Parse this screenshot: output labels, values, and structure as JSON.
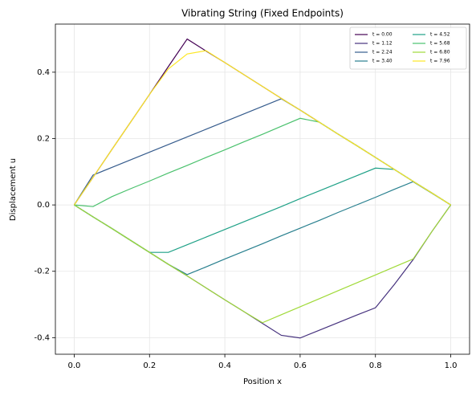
{
  "chart_data": {
    "type": "line",
    "title": "Vibrating String (Fixed Endpoints)",
    "x_label": "Position x",
    "y_label": "Displacement u",
    "xlim": [
      -0.05,
      1.05
    ],
    "ylim": [
      -0.45,
      0.545
    ],
    "xticks": [
      {
        "value": 0,
        "label": "0.0"
      },
      0.2,
      0.4,
      0.6,
      0.8,
      {
        "value": 1,
        "label": "1.0"
      }
    ],
    "yticks": [
      -0.4,
      -0.2,
      {
        "value": 0,
        "label": "0.0"
      },
      0.2,
      0.4
    ],
    "grid": true,
    "legend": "upper right",
    "x": [
      0,
      0.05,
      0.1,
      0.15,
      0.2,
      0.25,
      0.3,
      0.35,
      0.4,
      0.45,
      0.5,
      0.55,
      0.6,
      0.65,
      0.7,
      0.75,
      0.8,
      0.85,
      0.9,
      0.95,
      1
    ],
    "series": [
      {
        "name": "t = 0.00",
        "color": "#440154",
        "values": [
          0,
          0.083,
          0.167,
          0.25,
          0.333,
          0.417,
          0.5,
          0.464,
          0.429,
          0.393,
          0.357,
          0.321,
          0.286,
          0.25,
          0.214,
          0.179,
          0.143,
          0.107,
          0.071,
          0.036,
          0
        ]
      },
      {
        "name": "t = 1.12",
        "color": "#46327e",
        "values": [
          0,
          -0.036,
          -0.071,
          -0.107,
          -0.143,
          -0.179,
          -0.214,
          -0.25,
          -0.286,
          -0.321,
          -0.357,
          -0.393,
          -0.401,
          -0.378,
          -0.355,
          -0.332,
          -0.31,
          -0.24,
          -0.165,
          -0.08,
          0
        ]
      },
      {
        "name": "t = 2.24",
        "color": "#365c8d",
        "values": [
          0,
          0.09,
          0.113,
          0.136,
          0.159,
          0.182,
          0.205,
          0.228,
          0.251,
          0.274,
          0.297,
          0.32,
          0.286,
          0.25,
          0.214,
          0.179,
          0.143,
          0.107,
          0.071,
          0.036,
          0
        ]
      },
      {
        "name": "t = 3.40",
        "color": "#277f8e",
        "values": [
          0,
          -0.036,
          -0.071,
          -0.107,
          -0.143,
          -0.179,
          -0.21,
          -0.187,
          -0.163,
          -0.14,
          -0.117,
          -0.093,
          -0.07,
          -0.047,
          -0.023,
          0,
          0.023,
          0.047,
          0.07,
          0.035,
          0
        ]
      },
      {
        "name": "t = 4.52",
        "color": "#1fa187",
        "values": [
          0,
          -0.036,
          -0.071,
          -0.107,
          -0.143,
          -0.143,
          -0.12,
          -0.097,
          -0.074,
          -0.051,
          -0.028,
          -0.005,
          0.019,
          0.042,
          0.065,
          0.088,
          0.111,
          0.107,
          0.071,
          0.036,
          0
        ]
      },
      {
        "name": "t = 5.68",
        "color": "#4ac16d",
        "values": [
          0,
          -0.005,
          0.025,
          0.049,
          0.072,
          0.096,
          0.119,
          0.143,
          0.166,
          0.19,
          0.213,
          0.237,
          0.261,
          0.25,
          0.214,
          0.179,
          0.143,
          0.107,
          0.071,
          0.036,
          0
        ]
      },
      {
        "name": "t = 6.80",
        "color": "#a0da39",
        "values": [
          0,
          -0.036,
          -0.071,
          -0.107,
          -0.143,
          -0.179,
          -0.214,
          -0.25,
          -0.286,
          -0.321,
          -0.355,
          -0.331,
          -0.307,
          -0.283,
          -0.259,
          -0.235,
          -0.211,
          -0.187,
          -0.163,
          -0.08,
          0
        ]
      },
      {
        "name": "t = 7.96",
        "color": "#fde725",
        "values": [
          0,
          0.083,
          0.167,
          0.25,
          0.333,
          0.41,
          0.455,
          0.465,
          0.429,
          0.393,
          0.357,
          0.321,
          0.286,
          0.25,
          0.214,
          0.179,
          0.143,
          0.107,
          0.071,
          0.036,
          0
        ]
      }
    ]
  }
}
